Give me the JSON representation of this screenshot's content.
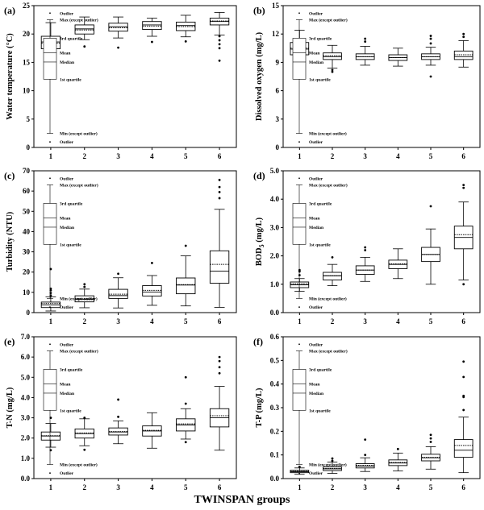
{
  "figure": {
    "xlabel": "TWINSPAN groups",
    "legend_labels": [
      "Outlier",
      "Max (except outlier)",
      "3rd quartile",
      "Mean",
      "Median",
      "1st quartile",
      "Min (except outlier)",
      "Outlier"
    ]
  },
  "chart_data": [
    {
      "type": "box",
      "panel": "(a)",
      "ylabel": "Water temperature (°C)",
      "ylim": [
        0,
        25
      ],
      "yticks": [
        0,
        5,
        10,
        15,
        20,
        25
      ],
      "ytick_labels": [
        "0",
        "5",
        "10",
        "15",
        "20",
        "25"
      ],
      "categories": [
        "1",
        "2",
        "3",
        "4",
        "5",
        "6"
      ],
      "boxes": [
        {
          "min": 14.4,
          "q1": 17.4,
          "median": 18.6,
          "mean": 18.4,
          "q3": 19.6,
          "max": 22.0,
          "outliers": []
        },
        {
          "min": 19.0,
          "q1": 20.0,
          "median": 20.9,
          "mean": 20.7,
          "q3": 21.6,
          "max": 23.0,
          "outliers": [
            17.8
          ]
        },
        {
          "min": 19.3,
          "q1": 20.5,
          "median": 21.3,
          "mean": 21.1,
          "q3": 21.9,
          "max": 23.0,
          "outliers": [
            17.6
          ]
        },
        {
          "min": 19.6,
          "q1": 20.8,
          "median": 21.6,
          "mean": 21.4,
          "q3": 22.2,
          "max": 22.8,
          "outliers": [
            18.6
          ]
        },
        {
          "min": 19.5,
          "q1": 20.6,
          "median": 21.5,
          "mean": 21.3,
          "q3": 22.1,
          "max": 23.3,
          "outliers": [
            18.7
          ]
        },
        {
          "min": 19.8,
          "q1": 21.6,
          "median": 22.2,
          "mean": 22.3,
          "q3": 22.8,
          "max": 23.8,
          "outliers": [
            15.3,
            17.5,
            18.2,
            18.9,
            19.6
          ]
        }
      ]
    },
    {
      "type": "box",
      "panel": "(b)",
      "ylabel": "Dissolved oxygen (mg/L)",
      "ylim": [
        0,
        15
      ],
      "yticks": [
        0,
        3,
        6,
        9,
        12,
        15
      ],
      "ytick_labels": [
        "0",
        "3",
        "6",
        "9",
        "12",
        "15"
      ],
      "categories": [
        "1",
        "2",
        "3",
        "4",
        "5",
        "6"
      ],
      "boxes": [
        {
          "min": 8.4,
          "q1": 9.8,
          "median": 10.4,
          "mean": 10.5,
          "q3": 11.1,
          "max": 12.4,
          "outliers": []
        },
        {
          "min": 8.4,
          "q1": 9.3,
          "median": 9.6,
          "mean": 9.7,
          "q3": 10.0,
          "max": 10.8,
          "outliers": [
            8.0,
            8.2
          ]
        },
        {
          "min": 8.7,
          "q1": 9.3,
          "median": 9.6,
          "mean": 9.6,
          "q3": 9.9,
          "max": 10.7,
          "outliers": [
            11.2,
            11.5
          ]
        },
        {
          "min": 8.6,
          "q1": 9.2,
          "median": 9.5,
          "mean": 9.5,
          "q3": 9.8,
          "max": 10.5,
          "outliers": []
        },
        {
          "min": 8.7,
          "q1": 9.3,
          "median": 9.6,
          "mean": 9.6,
          "q3": 9.9,
          "max": 10.6,
          "outliers": [
            7.5,
            11.0,
            11.5,
            11.8
          ]
        },
        {
          "min": 8.5,
          "q1": 9.3,
          "median": 9.6,
          "mean": 9.8,
          "q3": 10.2,
          "max": 11.3,
          "outliers": [
            11.7,
            12.0
          ]
        }
      ]
    },
    {
      "type": "box",
      "panel": "(c)",
      "ylabel": "Turbidity (NTU)",
      "ylim": [
        0,
        70
      ],
      "yticks": [
        0,
        10,
        20,
        30,
        40,
        50,
        60,
        70
      ],
      "ytick_labels": [
        "0",
        "10",
        "20",
        "30",
        "40",
        "50",
        "60",
        "70"
      ],
      "categories": [
        "1",
        "2",
        "3",
        "4",
        "5",
        "6"
      ],
      "boxes": [
        {
          "min": 0.8,
          "q1": 2.5,
          "median": 3.8,
          "mean": 4.5,
          "q3": 5.2,
          "max": 7.8,
          "outliers": [
            8.5,
            9.7,
            11.0,
            11.8,
            21.5
          ]
        },
        {
          "min": 2.4,
          "q1": 5.3,
          "median": 6.6,
          "mean": 7.0,
          "q3": 8.3,
          "max": 11.6,
          "outliers": [
            12.7,
            14.0
          ]
        },
        {
          "min": 2.3,
          "q1": 7.0,
          "median": 8.4,
          "mean": 9.1,
          "q3": 11.5,
          "max": 17.2,
          "outliers": [
            19.2
          ]
        },
        {
          "min": 3.6,
          "q1": 8.2,
          "median": 10.1,
          "mean": 11.0,
          "q3": 13.3,
          "max": 18.3,
          "outliers": [
            24.5
          ]
        },
        {
          "min": 3.3,
          "q1": 9.3,
          "median": 13.6,
          "mean": 13.8,
          "q3": 17.1,
          "max": 28.0,
          "outliers": [
            33.0
          ]
        },
        {
          "min": 2.6,
          "q1": 14.5,
          "median": 20.5,
          "mean": 23.8,
          "q3": 30.5,
          "max": 51.0,
          "outliers": [
            56.5,
            59.5,
            62.0,
            65.5
          ]
        }
      ]
    },
    {
      "type": "box",
      "panel": "(d)",
      "ylabel": "BOD5 (mg/L)",
      "ylim": [
        0,
        5
      ],
      "yticks": [
        0,
        1,
        2,
        3,
        4,
        5
      ],
      "ytick_labels": [
        "0.0",
        "1.0",
        "2.0",
        "3.0",
        "4.0",
        "5.0"
      ],
      "categories": [
        "1",
        "2",
        "3",
        "4",
        "5",
        "6"
      ],
      "boxes": [
        {
          "min": 0.75,
          "q1": 0.88,
          "median": 0.98,
          "mean": 1.02,
          "q3": 1.08,
          "max": 1.2,
          "outliers": [
            1.32,
            1.45,
            1.5
          ]
        },
        {
          "min": 0.95,
          "q1": 1.15,
          "median": 1.3,
          "mean": 1.3,
          "q3": 1.42,
          "max": 1.7,
          "outliers": [
            1.95
          ]
        },
        {
          "min": 1.1,
          "q1": 1.35,
          "median": 1.5,
          "mean": 1.5,
          "q3": 1.65,
          "max": 1.95,
          "outliers": [
            2.2,
            2.3
          ]
        },
        {
          "min": 1.2,
          "q1": 1.55,
          "median": 1.7,
          "mean": 1.72,
          "q3": 1.85,
          "max": 2.25,
          "outliers": []
        },
        {
          "min": 1.0,
          "q1": 1.8,
          "median": 2.05,
          "mean": 2.05,
          "q3": 2.3,
          "max": 2.95,
          "outliers": [
            3.75
          ]
        },
        {
          "min": 1.15,
          "q1": 2.25,
          "median": 2.65,
          "mean": 2.75,
          "q3": 3.05,
          "max": 3.9,
          "outliers": [
            1.0,
            4.4,
            4.5
          ]
        }
      ]
    },
    {
      "type": "box",
      "panel": "(e)",
      "ylabel": "T-N (mg/L)",
      "ylim": [
        0,
        7
      ],
      "yticks": [
        0,
        1,
        2,
        3,
        4,
        5,
        6,
        7
      ],
      "ytick_labels": [
        "0.0",
        "1.0",
        "2.0",
        "3.0",
        "4.0",
        "5.0",
        "6.0",
        "7.0"
      ],
      "categories": [
        "1",
        "2",
        "3",
        "4",
        "5",
        "6"
      ],
      "boxes": [
        {
          "min": 1.55,
          "q1": 1.9,
          "median": 2.1,
          "mean": 2.12,
          "q3": 2.3,
          "max": 2.72,
          "outliers": [
            1.4,
            3.0
          ]
        },
        {
          "min": 1.62,
          "q1": 2.0,
          "median": 2.22,
          "mean": 2.25,
          "q3": 2.45,
          "max": 2.95,
          "outliers": [
            1.42,
            3.0
          ]
        },
        {
          "min": 1.72,
          "q1": 2.15,
          "median": 2.3,
          "mean": 2.32,
          "q3": 2.5,
          "max": 2.85,
          "outliers": [
            3.05,
            3.9
          ]
        },
        {
          "min": 1.5,
          "q1": 2.1,
          "median": 2.35,
          "mean": 2.38,
          "q3": 2.6,
          "max": 3.25,
          "outliers": []
        },
        {
          "min": 1.95,
          "q1": 2.35,
          "median": 2.65,
          "mean": 2.7,
          "q3": 2.95,
          "max": 3.45,
          "outliers": [
            1.8,
            3.7,
            5.0
          ]
        },
        {
          "min": 1.4,
          "q1": 2.55,
          "median": 3.0,
          "mean": 3.1,
          "q3": 3.45,
          "max": 4.55,
          "outliers": [
            5.2,
            5.5,
            5.8,
            6.0
          ]
        }
      ]
    },
    {
      "type": "box",
      "panel": "(f)",
      "ylabel": "T-P (mg/L)",
      "ylim": [
        0,
        0.6
      ],
      "yticks": [
        0,
        0.1,
        0.2,
        0.3,
        0.4,
        0.5,
        0.6
      ],
      "ytick_labels": [
        "0.0",
        "0.1",
        "0.2",
        "0.3",
        "0.4",
        "0.5",
        "0.6"
      ],
      "categories": [
        "1",
        "2",
        "3",
        "4",
        "5",
        "6"
      ],
      "boxes": [
        {
          "min": 0.018,
          "q1": 0.025,
          "median": 0.029,
          "mean": 0.031,
          "q3": 0.035,
          "max": 0.045,
          "outliers": [
            0.05
          ]
        },
        {
          "min": 0.022,
          "q1": 0.034,
          "median": 0.041,
          "mean": 0.043,
          "q3": 0.05,
          "max": 0.07,
          "outliers": [
            0.075,
            0.085
          ]
        },
        {
          "min": 0.03,
          "q1": 0.045,
          "median": 0.053,
          "mean": 0.056,
          "q3": 0.063,
          "max": 0.088,
          "outliers": [
            0.1,
            0.165
          ]
        },
        {
          "min": 0.032,
          "q1": 0.055,
          "median": 0.066,
          "mean": 0.068,
          "q3": 0.079,
          "max": 0.108,
          "outliers": [
            0.125
          ]
        },
        {
          "min": 0.04,
          "q1": 0.075,
          "median": 0.088,
          "mean": 0.09,
          "q3": 0.103,
          "max": 0.135,
          "outliers": [
            0.155,
            0.17,
            0.185
          ]
        },
        {
          "min": 0.025,
          "q1": 0.09,
          "median": 0.12,
          "mean": 0.14,
          "q3": 0.165,
          "max": 0.26,
          "outliers": [
            0.29,
            0.345,
            0.35,
            0.43,
            0.495
          ]
        }
      ]
    }
  ]
}
